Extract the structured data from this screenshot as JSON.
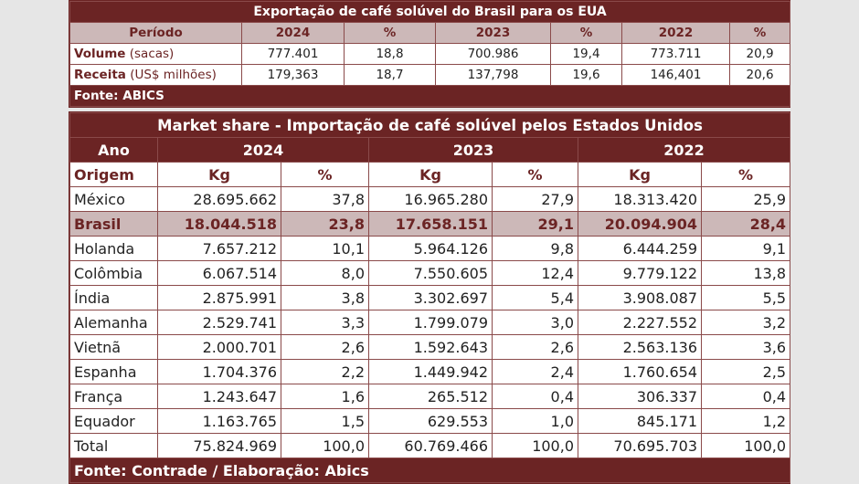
{
  "export_table": {
    "title": "Exportação de café solúvel do Brasil para os EUA",
    "headers": [
      "Período",
      "2024",
      "%",
      "2023",
      "%",
      "2022",
      "%"
    ],
    "rows": [
      {
        "label": "Volume",
        "unit": " (sacas)",
        "values": [
          "777.401",
          "18,8",
          "700.986",
          "19,4",
          "773.711",
          "20,9"
        ]
      },
      {
        "label": "Receita",
        "unit": " (US$ milhões)",
        "values": [
          "179,363",
          "18,7",
          "137,798",
          "19,6",
          "146,401",
          "20,6"
        ]
      }
    ],
    "source": "Fonte: ABICS"
  },
  "market_table": {
    "title": "Market share - Importação de café solúvel pelos Estados Unidos",
    "year_label": "Ano",
    "years": [
      "2024",
      "2023",
      "2022"
    ],
    "origin_label": "Origem",
    "col_kg": "Kg",
    "col_pct": "%",
    "rows": [
      {
        "country": "México",
        "v": [
          "28.695.662",
          "37,8",
          "16.965.280",
          "27,9",
          "18.313.420",
          "25,9"
        ]
      },
      {
        "country": "Brasil",
        "v": [
          "18.044.518",
          "23,8",
          "17.658.151",
          "29,1",
          "20.094.904",
          "28,4"
        ]
      },
      {
        "country": "Holanda",
        "v": [
          "7.657.212",
          "10,1",
          "5.964.126",
          "9,8",
          "6.444.259",
          "9,1"
        ]
      },
      {
        "country": "Colômbia",
        "v": [
          "6.067.514",
          "8,0",
          "7.550.605",
          "12,4",
          "9.779.122",
          "13,8"
        ]
      },
      {
        "country": "Índia",
        "v": [
          "2.875.991",
          "3,8",
          "3.302.697",
          "5,4",
          "3.908.087",
          "5,5"
        ]
      },
      {
        "country": "Alemanha",
        "v": [
          "2.529.741",
          "3,3",
          "1.799.079",
          "3,0",
          "2.227.552",
          "3,2"
        ]
      },
      {
        "country": "Vietnã",
        "v": [
          "2.000.701",
          "2,6",
          "1.592.643",
          "2,6",
          "2.563.136",
          "3,6"
        ]
      },
      {
        "country": "Espanha",
        "v": [
          "1.704.376",
          "2,2",
          "1.449.942",
          "2,4",
          "1.760.654",
          "2,5"
        ]
      },
      {
        "country": "França",
        "v": [
          "1.243.647",
          "1,6",
          "265.512",
          "0,4",
          "306.337",
          "0,4"
        ]
      },
      {
        "country": "Equador",
        "v": [
          "1.163.765",
          "1,5",
          "629.553",
          "1,0",
          "845.171",
          "1,2"
        ]
      },
      {
        "country": "Total",
        "v": [
          "75.824.969",
          "100,0",
          "60.769.466",
          "100,0",
          "70.695.703",
          "100,0"
        ]
      }
    ],
    "source": "Fonte: Contrade / Elaboração: Abics"
  },
  "colors": {
    "header_dark": "#6b2424",
    "header_light": "#ccb8b8",
    "background": "#e6e6e6"
  }
}
